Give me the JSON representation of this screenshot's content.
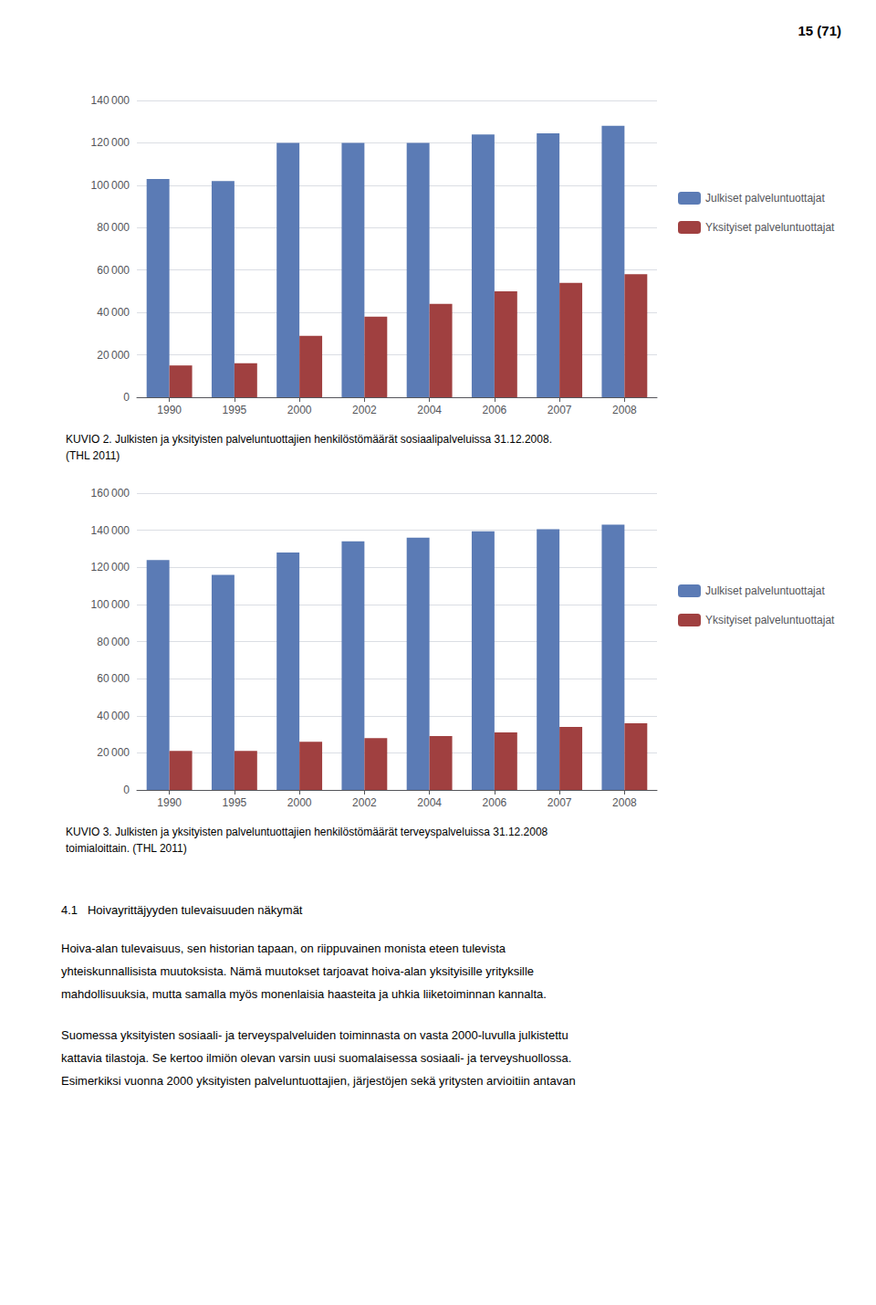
{
  "chart_data": [
    {
      "type": "bar",
      "title": "KUVIO 2. Julkisten ja yksityisten palveluntuottajien henkilöstömäärät sosiaalipalveluissa 31.12.2008.",
      "subtitle": "(THL 2011)",
      "categories": [
        "1990",
        "1995",
        "2000",
        "2002",
        "2004",
        "2006",
        "2007",
        "2008"
      ],
      "series": [
        {
          "name": "Julkiset palveluntuottajat",
          "color": "#5B7BB5",
          "values": [
            103000,
            102000,
            120000,
            120000,
            120000,
            124000,
            124500,
            128000
          ]
        },
        {
          "name": "Yksityiset palveluntuottajat",
          "color": "#A04040",
          "values": [
            15000,
            16000,
            29000,
            38000,
            44000,
            50000,
            54000,
            58000
          ]
        }
      ],
      "ylim": [
        0,
        140000
      ],
      "yticks": [
        0,
        {
          "value": 20000,
          "label": "20 000"
        },
        {
          "value": 40000,
          "label": "40 000"
        },
        {
          "value": 60000,
          "label": "60 000"
        },
        {
          "value": 80000,
          "label": "80 000"
        },
        {
          "value": 100000,
          "label": "100 000"
        },
        {
          "value": 120000,
          "label": "120 000"
        },
        {
          "value": 140000,
          "label": "140 000"
        }
      ],
      "grid": true,
      "legend": "right"
    },
    {
      "type": "bar",
      "title": "KUVIO 3. Julkisten ja yksityisten palveluntuottajien henkilöstömäärät terveyspalveluissa 31.12.2008",
      "subtitle": "toimialoittain. (THL 2011)",
      "categories": [
        "1990",
        "1995",
        "2000",
        "2002",
        "2004",
        "2006",
        "2007",
        "2008"
      ],
      "series": [
        {
          "name": "Julkiset palveluntuottajat",
          "color": "#5B7BB5",
          "values": [
            124000,
            116000,
            128000,
            134000,
            136000,
            139500,
            140500,
            143000
          ]
        },
        {
          "name": "Yksityiset palveluntuottajat",
          "color": "#A04040",
          "values": [
            21000,
            21000,
            26000,
            28000,
            29000,
            31000,
            34000,
            36000
          ]
        }
      ],
      "ylim": [
        0,
        160000
      ],
      "yticks": [
        0,
        {
          "value": 20000,
          "label": "20 000"
        },
        {
          "value": 40000,
          "label": "40 000"
        },
        {
          "value": 60000,
          "label": "60 000"
        },
        {
          "value": 80000,
          "label": "80 000"
        },
        {
          "value": 100000,
          "label": "100 000"
        },
        {
          "value": 120000,
          "label": "120 000"
        },
        {
          "value": 140000,
          "label": "140 000"
        },
        {
          "value": 160000,
          "label": "160 000"
        }
      ],
      "grid": true,
      "legend": "right"
    }
  ],
  "annotations": [
    "15 (71)",
    "4.1   Hoivayrittäjyyden tulevaisuuden näkymät",
    "Hoiva-alan tulevaisuus, sen historian tapaan, on riippuvainen monista eteen tulevista",
    "yhteiskunnallisista muutoksista. Nämä muutokset tarjoavat hoiva-alan yksityisille yrityksille",
    "mahdollisuuksia, mutta samalla myös monenlaisia haasteita ja uhkia liiketoiminnan kannalta.",
    "Suomessa yksityisten sosiaali- ja terveyspalveluiden toiminnasta on vasta 2000-luvulla julkistettu",
    "kattavia tilastoja. Se kertoo ilmiön olevan varsin uusi suomalaisessa sosiaali- ja terveyshuollossa.",
    "Esimerkiksi vuonna 2000 yksityisten palveluntuottajien, järjestöjen sekä yritysten arvioitiin antavan"
  ]
}
